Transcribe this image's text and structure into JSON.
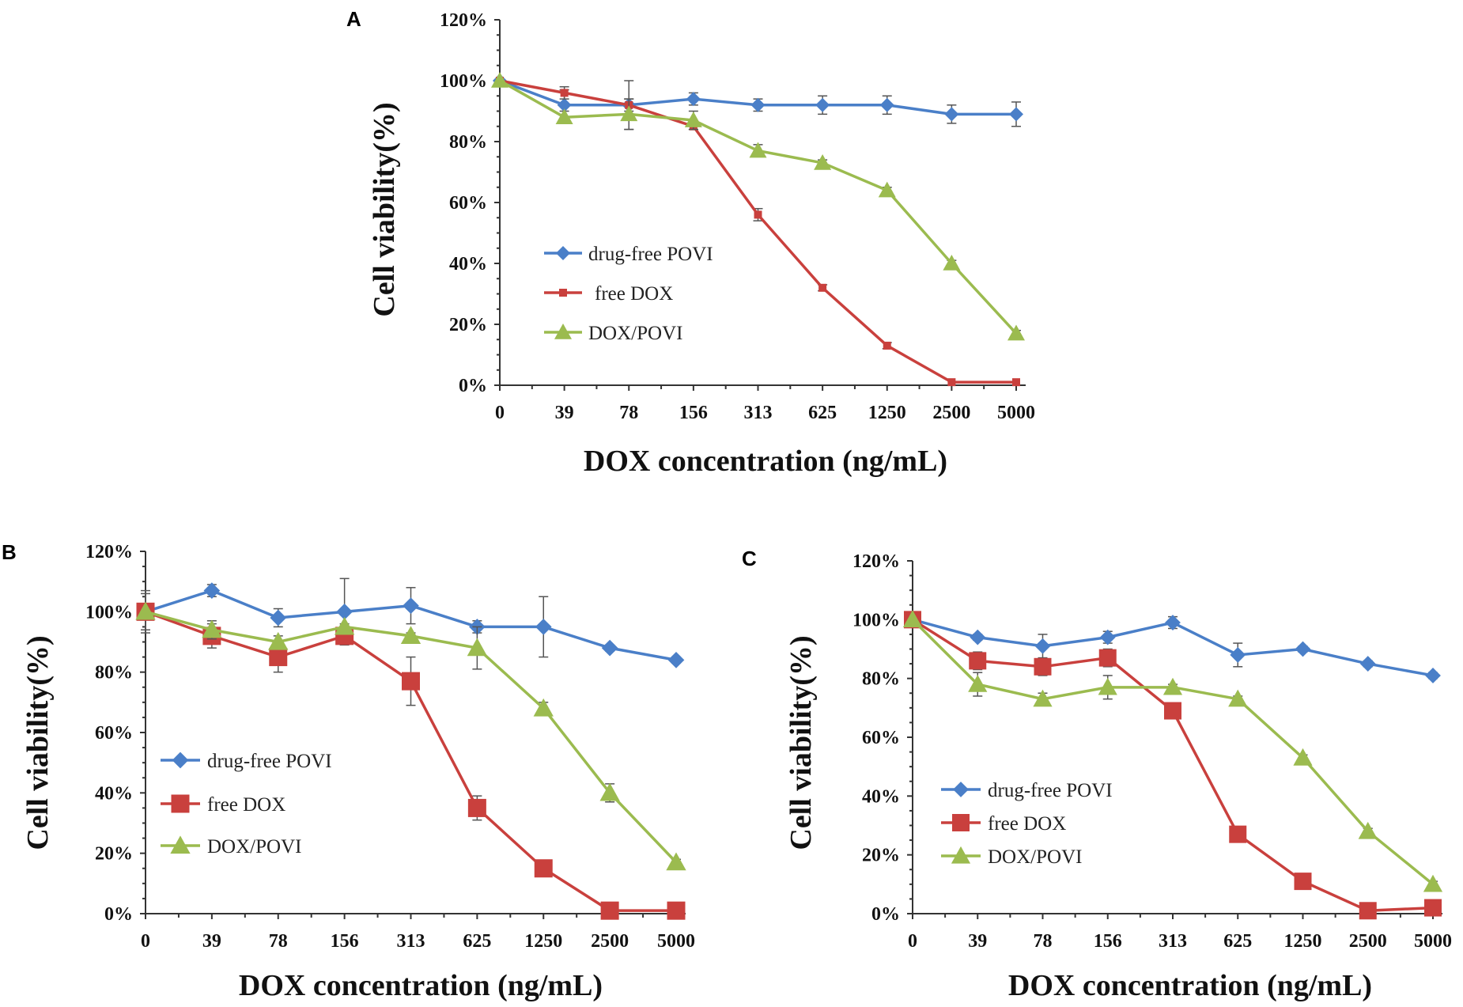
{
  "colors": {
    "drug_free": "#4a7fc8",
    "free_dox": "#c9403d",
    "dox_povi": "#9bbb4f",
    "error": "#555555"
  },
  "chart_data": [
    {
      "panel": "A",
      "type": "line",
      "categories": [
        "0",
        "39",
        "78",
        "156",
        "313",
        "625",
        "1250",
        "2500",
        "5000"
      ],
      "xlabel": "DOX concentration (ng/mL)",
      "ylabel": "Cell viability(%)",
      "ylim": [
        0,
        120
      ],
      "yticks": [
        "0%",
        "20%",
        "40%",
        "60%",
        "80%",
        "100%",
        "120%"
      ],
      "series": [
        {
          "name": "drug-free POVI",
          "marker": "diamond",
          "values": [
            100,
            92,
            92,
            94,
            92,
            92,
            92,
            89,
            89
          ],
          "errors": [
            0,
            5,
            2,
            2,
            2,
            3,
            3,
            3,
            4
          ]
        },
        {
          "name": "free DOX",
          "marker": "small-square",
          "values": [
            100,
            96,
            92,
            85,
            56,
            32,
            13,
            1,
            1
          ],
          "errors": [
            0,
            2,
            8,
            1,
            2,
            1,
            1,
            0,
            0
          ]
        },
        {
          "name": "DOX/POVI",
          "marker": "triangle",
          "values": [
            100,
            88,
            89,
            87,
            77,
            73,
            64,
            40,
            17
          ],
          "errors": [
            0,
            2,
            5,
            3,
            2,
            1,
            1,
            1,
            1
          ]
        }
      ]
    },
    {
      "panel": "B",
      "type": "line",
      "categories": [
        "0",
        "39",
        "78",
        "156",
        "313",
        "625",
        "1250",
        "2500",
        "5000"
      ],
      "xlabel": "DOX concentration (ng/mL)",
      "ylabel": "Cell viability(%)",
      "ylim": [
        0,
        120
      ],
      "yticks": [
        "0%",
        "20%",
        "40%",
        "60%",
        "80%",
        "100%",
        "120%"
      ],
      "series": [
        {
          "name": "drug-free POVI",
          "marker": "diamond",
          "values": [
            100,
            107,
            98,
            100,
            102,
            95,
            95,
            88,
            84
          ],
          "errors": [
            7,
            2,
            3,
            11,
            6,
            2,
            10,
            1,
            1
          ]
        },
        {
          "name": "free DOX",
          "marker": "square",
          "values": [
            100,
            92,
            85,
            92,
            77,
            35,
            15,
            1,
            1
          ],
          "errors": [
            6,
            4,
            5,
            2,
            8,
            4,
            1,
            0,
            0
          ]
        },
        {
          "name": "DOX/POVI",
          "marker": "triangle",
          "values": [
            100,
            94,
            90,
            95,
            92,
            88,
            68,
            40,
            17
          ],
          "errors": [
            0,
            3,
            2,
            1,
            1,
            7,
            2,
            3,
            1
          ]
        }
      ]
    },
    {
      "panel": "C",
      "type": "line",
      "categories": [
        "0",
        "39",
        "78",
        "156",
        "313",
        "625",
        "1250",
        "2500",
        "5000"
      ],
      "xlabel": "DOX concentration (ng/mL)",
      "ylabel": "Cell  viability(%)",
      "ylim": [
        0,
        120
      ],
      "yticks": [
        "0%",
        "20%",
        "40%",
        "60%",
        "80%",
        "100%",
        "120%"
      ],
      "series": [
        {
          "name": "drug-free POVI",
          "marker": "diamond",
          "values": [
            100,
            94,
            91,
            94,
            99,
            88,
            90,
            85,
            81
          ],
          "errors": [
            0,
            1,
            4,
            2,
            2,
            4,
            1,
            1,
            1
          ]
        },
        {
          "name": "free DOX",
          "marker": "square",
          "values": [
            100,
            86,
            84,
            87,
            69,
            27,
            11,
            1,
            2
          ],
          "errors": [
            0,
            3,
            3,
            3,
            2,
            1,
            1,
            0,
            0
          ]
        },
        {
          "name": "DOX/POVI",
          "marker": "triangle",
          "values": [
            100,
            78,
            73,
            77,
            77,
            73,
            53,
            28,
            10
          ],
          "errors": [
            0,
            4,
            2,
            4,
            1,
            1,
            1,
            1,
            1
          ]
        }
      ]
    }
  ]
}
